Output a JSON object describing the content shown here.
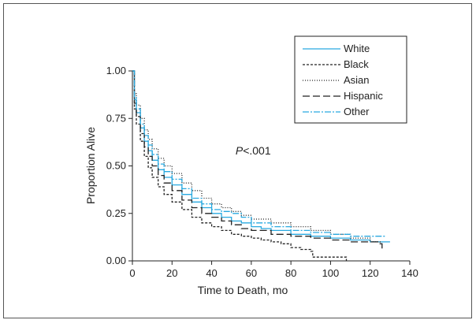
{
  "chart_data": {
    "type": "line",
    "title": "",
    "xlabel": "Time to Death, mo",
    "ylabel": "Proportion Alive",
    "xlim": [
      0,
      140
    ],
    "ylim": [
      0,
      1
    ],
    "x_ticks": [
      0,
      20,
      40,
      60,
      80,
      100,
      120,
      140
    ],
    "y_ticks": [
      "0.00",
      "0.25",
      "0.50",
      "0.75",
      "1.00"
    ],
    "grid": false,
    "legend_position": "top-right",
    "annotation": {
      "italic": "P",
      "text": "<.001",
      "x": 60,
      "y": 0.58
    },
    "series": [
      {
        "name": "White",
        "color": "#29a9e0",
        "dash": "solid",
        "points": [
          [
            0,
            1.0
          ],
          [
            1,
            0.85
          ],
          [
            2,
            0.78
          ],
          [
            4,
            0.7
          ],
          [
            6,
            0.63
          ],
          [
            8,
            0.58
          ],
          [
            10,
            0.53
          ],
          [
            13,
            0.48
          ],
          [
            16,
            0.44
          ],
          [
            20,
            0.4
          ],
          [
            25,
            0.35
          ],
          [
            30,
            0.31
          ],
          [
            35,
            0.28
          ],
          [
            40,
            0.25
          ],
          [
            45,
            0.23
          ],
          [
            50,
            0.21
          ],
          [
            55,
            0.2
          ],
          [
            60,
            0.18
          ],
          [
            65,
            0.17
          ],
          [
            70,
            0.16
          ],
          [
            80,
            0.14
          ],
          [
            90,
            0.13
          ],
          [
            100,
            0.12
          ],
          [
            110,
            0.11
          ],
          [
            120,
            0.1
          ],
          [
            130,
            0.1
          ]
        ]
      },
      {
        "name": "Black",
        "color": "#222222",
        "dash": "3,2",
        "points": [
          [
            0,
            1.0
          ],
          [
            1,
            0.8
          ],
          [
            2,
            0.72
          ],
          [
            4,
            0.63
          ],
          [
            6,
            0.55
          ],
          [
            8,
            0.49
          ],
          [
            10,
            0.44
          ],
          [
            13,
            0.39
          ],
          [
            16,
            0.35
          ],
          [
            20,
            0.31
          ],
          [
            25,
            0.27
          ],
          [
            30,
            0.23
          ],
          [
            35,
            0.2
          ],
          [
            40,
            0.18
          ],
          [
            45,
            0.16
          ],
          [
            50,
            0.14
          ],
          [
            55,
            0.13
          ],
          [
            60,
            0.12
          ],
          [
            65,
            0.11
          ],
          [
            70,
            0.1
          ],
          [
            75,
            0.09
          ],
          [
            80,
            0.07
          ],
          [
            85,
            0.06
          ],
          [
            90,
            0.05
          ],
          [
            91,
            0.02
          ],
          [
            100,
            0.02
          ],
          [
            107,
            0.02
          ],
          [
            108,
            0.0
          ]
        ]
      },
      {
        "name": "Asian",
        "color": "#222222",
        "dash": "1,2",
        "points": [
          [
            0,
            1.0
          ],
          [
            1,
            0.88
          ],
          [
            2,
            0.82
          ],
          [
            4,
            0.75
          ],
          [
            6,
            0.69
          ],
          [
            8,
            0.64
          ],
          [
            10,
            0.59
          ],
          [
            13,
            0.54
          ],
          [
            16,
            0.5
          ],
          [
            20,
            0.46
          ],
          [
            25,
            0.41
          ],
          [
            30,
            0.37
          ],
          [
            35,
            0.33
          ],
          [
            40,
            0.3
          ],
          [
            45,
            0.28
          ],
          [
            50,
            0.26
          ],
          [
            55,
            0.24
          ],
          [
            60,
            0.22
          ],
          [
            70,
            0.2
          ],
          [
            80,
            0.18
          ],
          [
            90,
            0.16
          ],
          [
            100,
            0.14
          ],
          [
            110,
            0.12
          ],
          [
            120,
            0.1
          ],
          [
            125,
            0.09
          ]
        ]
      },
      {
        "name": "Hispanic",
        "color": "#222222",
        "dash": "9,4",
        "points": [
          [
            0,
            1.0
          ],
          [
            1,
            0.83
          ],
          [
            2,
            0.76
          ],
          [
            4,
            0.67
          ],
          [
            6,
            0.6
          ],
          [
            8,
            0.55
          ],
          [
            10,
            0.5
          ],
          [
            13,
            0.45
          ],
          [
            16,
            0.41
          ],
          [
            20,
            0.37
          ],
          [
            25,
            0.32
          ],
          [
            30,
            0.28
          ],
          [
            35,
            0.25
          ],
          [
            40,
            0.23
          ],
          [
            45,
            0.21
          ],
          [
            50,
            0.19
          ],
          [
            55,
            0.17
          ],
          [
            60,
            0.16
          ],
          [
            70,
            0.14
          ],
          [
            80,
            0.13
          ],
          [
            90,
            0.12
          ],
          [
            100,
            0.11
          ],
          [
            110,
            0.1
          ],
          [
            120,
            0.1
          ],
          [
            125,
            0.09
          ],
          [
            126,
            0.05
          ]
        ]
      },
      {
        "name": "Other",
        "color": "#29a9e0",
        "dash": "8,2,2,2",
        "points": [
          [
            0,
            1.0
          ],
          [
            1,
            0.86
          ],
          [
            2,
            0.8
          ],
          [
            4,
            0.72
          ],
          [
            6,
            0.66
          ],
          [
            8,
            0.61
          ],
          [
            10,
            0.56
          ],
          [
            13,
            0.51
          ],
          [
            16,
            0.47
          ],
          [
            20,
            0.43
          ],
          [
            25,
            0.38
          ],
          [
            30,
            0.33
          ],
          [
            35,
            0.3
          ],
          [
            40,
            0.27
          ],
          [
            45,
            0.26
          ],
          [
            50,
            0.25
          ],
          [
            55,
            0.23
          ],
          [
            60,
            0.2
          ],
          [
            70,
            0.18
          ],
          [
            80,
            0.16
          ],
          [
            90,
            0.15
          ],
          [
            100,
            0.14
          ],
          [
            110,
            0.13
          ],
          [
            120,
            0.13
          ],
          [
            128,
            0.13
          ]
        ]
      }
    ]
  }
}
